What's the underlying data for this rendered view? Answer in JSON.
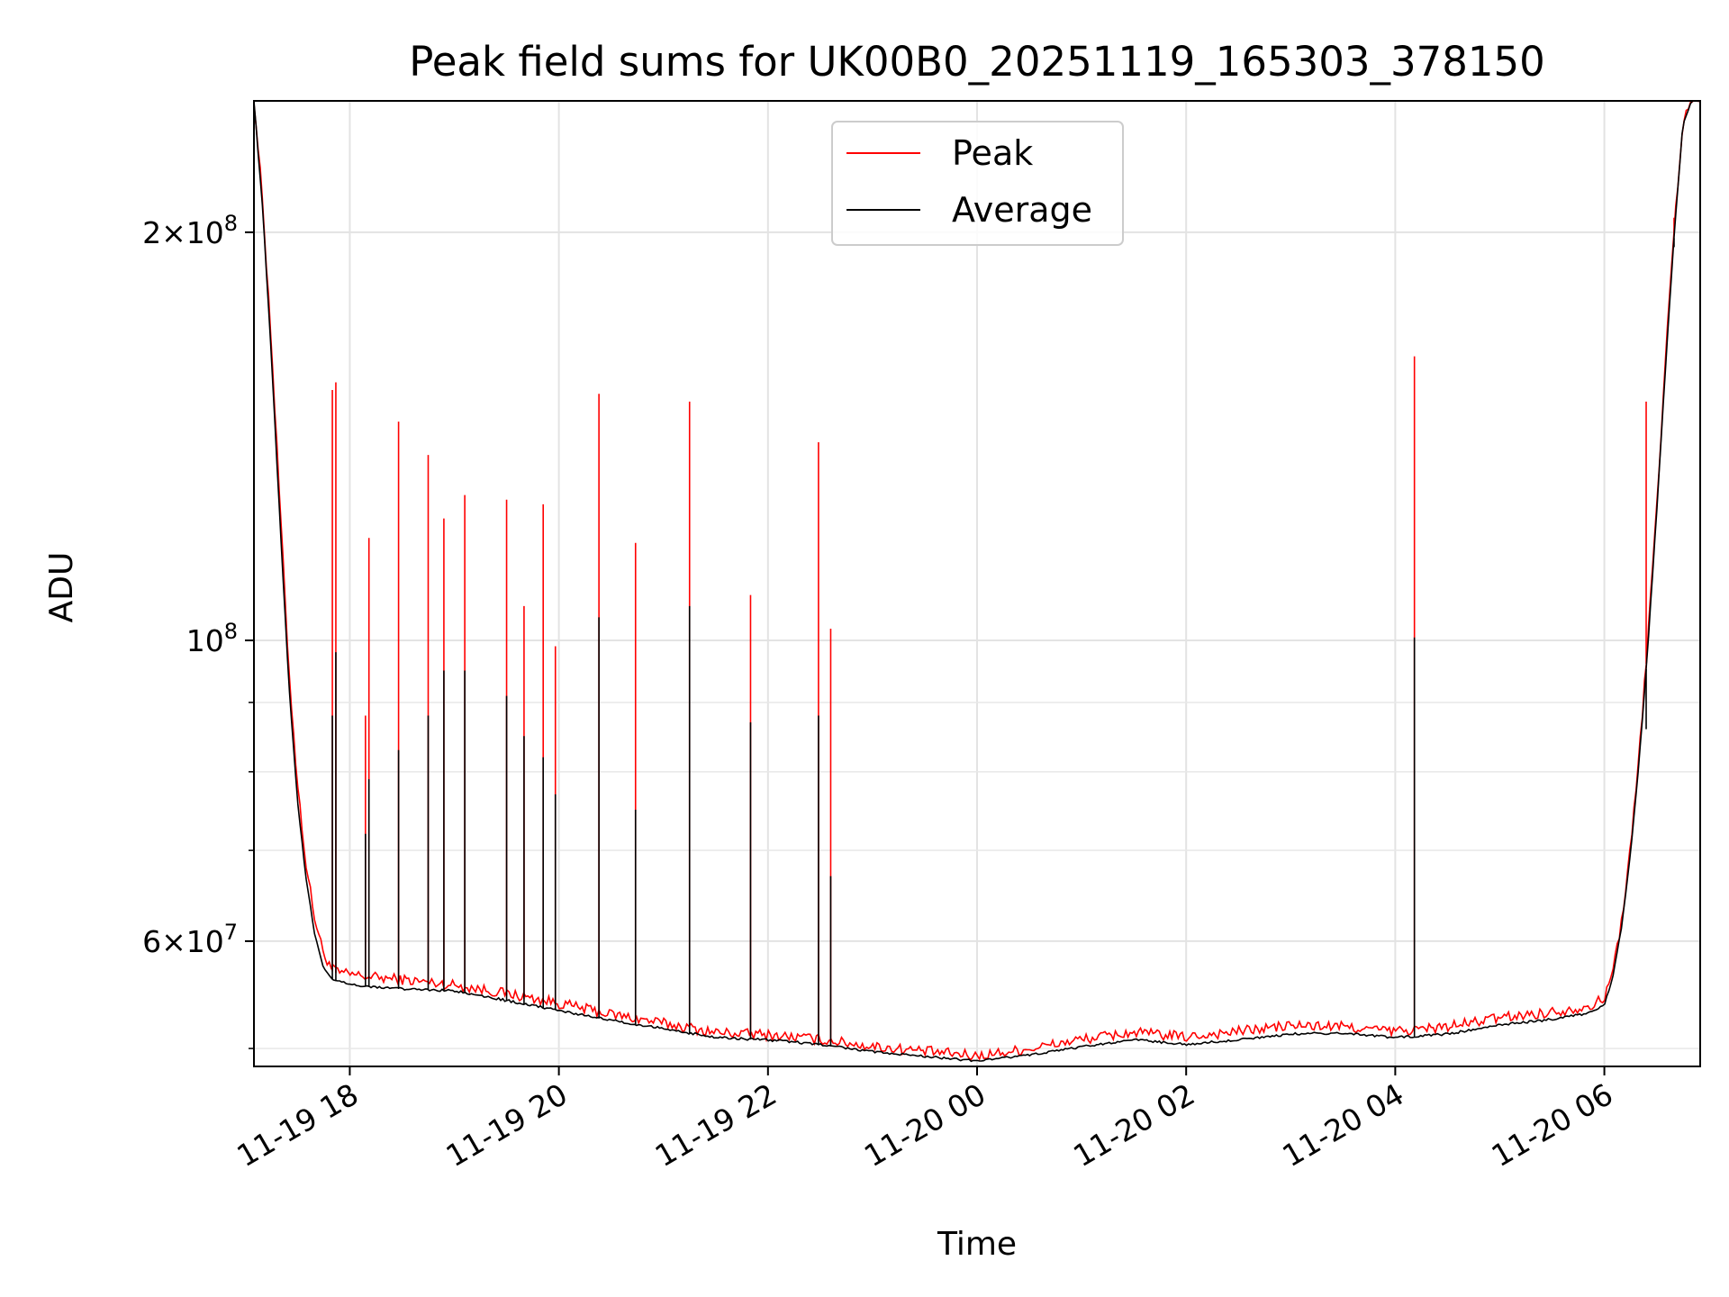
{
  "chart_data": {
    "type": "line",
    "title": "Peak field sums for UK00B0_20251119_165303_378150",
    "xlabel": "Time",
    "ylabel": "ADU",
    "yscale": "log",
    "grid": true,
    "legend_position": "top-center",
    "x_range": [
      "2025-11-19 17:05",
      "2025-11-20 06:55"
    ],
    "ylim": [
      48500000,
      250000000
    ],
    "x_ticks": [
      {
        "x": "2025-11-19 18:00",
        "label": "11-19 18"
      },
      {
        "x": "2025-11-19 20:00",
        "label": "11-19 20"
      },
      {
        "x": "2025-11-19 22:00",
        "label": "11-19 22"
      },
      {
        "x": "2025-11-20 00:00",
        "label": "11-20 00"
      },
      {
        "x": "2025-11-20 02:00",
        "label": "11-20 02"
      },
      {
        "x": "2025-11-20 04:00",
        "label": "11-20 04"
      },
      {
        "x": "2025-11-20 06:00",
        "label": "11-20 06"
      }
    ],
    "y_ticks_major": [
      {
        "y": 60000000,
        "base": "6",
        "exp": "7"
      },
      {
        "y": 100000000,
        "base": "",
        "exp": "8"
      },
      {
        "y": 200000000,
        "base": "2",
        "exp": "8"
      }
    ],
    "y_ticks_minor": [
      50000000,
      70000000,
      80000000,
      90000000
    ],
    "series": [
      {
        "name": "Peak",
        "color": "#ff0000",
        "x": [
          "2025-11-19 17:05",
          "2025-11-19 17:10",
          "2025-11-19 17:15",
          "2025-11-19 17:20",
          "2025-11-19 17:25",
          "2025-11-19 17:30",
          "2025-11-19 17:35",
          "2025-11-19 17:40",
          "2025-11-19 17:45",
          "2025-11-19 17:50",
          "2025-11-19 17:55",
          "2025-11-19 18:10",
          "2025-11-19 18:30",
          "2025-11-19 19:00",
          "2025-11-19 19:30",
          "2025-11-19 20:00",
          "2025-11-19 20:30",
          "2025-11-19 21:00",
          "2025-11-19 21:30",
          "2025-11-19 22:00",
          "2025-11-19 22:30",
          "2025-11-19 23:00",
          "2025-11-19 23:30",
          "2025-11-20 00:00",
          "2025-11-20 00:30",
          "2025-11-20 01:00",
          "2025-11-20 01:30",
          "2025-11-20 02:00",
          "2025-11-20 02:30",
          "2025-11-20 03:00",
          "2025-11-20 03:30",
          "2025-11-20 04:00",
          "2025-11-20 04:30",
          "2025-11-20 05:00",
          "2025-11-20 05:30",
          "2025-11-20 05:50",
          "2025-11-20 06:00",
          "2025-11-20 06:05",
          "2025-11-20 06:10",
          "2025-11-20 06:15",
          "2025-11-20 06:20",
          "2025-11-20 06:25",
          "2025-11-20 06:30",
          "2025-11-20 06:35",
          "2025-11-20 06:40",
          "2025-11-20 06:45",
          "2025-11-20 06:50",
          "2025-11-20 06:55"
        ],
        "y": [
          250000000,
          210000000,
          165000000,
          125000000,
          95000000,
          78000000,
          68000000,
          62000000,
          58500000,
          57000000,
          56600000,
          56300000,
          56000000,
          55500000,
          54700000,
          53800000,
          52800000,
          52000000,
          51200000,
          51000000,
          50600000,
          50000000,
          49600000,
          49200000,
          49800000,
          50600000,
          51200000,
          50800000,
          51300000,
          51800000,
          51700000,
          51300000,
          51700000,
          52500000,
          53000000,
          53500000,
          54200000,
          57000000,
          62000000,
          70000000,
          82000000,
          100000000,
          125000000,
          160000000,
          200000000,
          240000000,
          250000000,
          250000000
        ],
        "spikes": [
          {
            "x": "2025-11-19 17:50",
            "y": 153000000
          },
          {
            "x": "2025-11-19 17:52",
            "y": 155000000
          },
          {
            "x": "2025-11-19 18:09",
            "y": 88000000
          },
          {
            "x": "2025-11-19 18:11",
            "y": 119000000
          },
          {
            "x": "2025-11-19 18:28",
            "y": 145000000
          },
          {
            "x": "2025-11-19 18:45",
            "y": 137000000
          },
          {
            "x": "2025-11-19 18:54",
            "y": 123000000
          },
          {
            "x": "2025-11-19 19:06",
            "y": 128000000
          },
          {
            "x": "2025-11-19 19:30",
            "y": 127000000
          },
          {
            "x": "2025-11-19 19:40",
            "y": 106000000
          },
          {
            "x": "2025-11-19 19:51",
            "y": 126000000
          },
          {
            "x": "2025-11-19 19:58",
            "y": 99000000
          },
          {
            "x": "2025-11-19 20:23",
            "y": 152000000
          },
          {
            "x": "2025-11-19 20:44",
            "y": 118000000
          },
          {
            "x": "2025-11-19 21:15",
            "y": 150000000
          },
          {
            "x": "2025-11-19 21:50",
            "y": 108000000
          },
          {
            "x": "2025-11-19 22:29",
            "y": 140000000
          },
          {
            "x": "2025-11-19 22:36",
            "y": 102000000
          },
          {
            "x": "2025-11-20 04:11",
            "y": 162000000
          },
          {
            "x": "2025-11-20 06:24",
            "y": 150000000
          },
          {
            "x": "2025-11-20 06:40",
            "y": 205000000
          }
        ]
      },
      {
        "name": "Average",
        "color": "#000000",
        "x": [
          "2025-11-19 17:05",
          "2025-11-19 17:10",
          "2025-11-19 17:15",
          "2025-11-19 17:20",
          "2025-11-19 17:25",
          "2025-11-19 17:30",
          "2025-11-19 17:35",
          "2025-11-19 17:40",
          "2025-11-19 17:45",
          "2025-11-19 17:50",
          "2025-11-19 17:55",
          "2025-11-19 18:10",
          "2025-11-19 18:30",
          "2025-11-19 19:00",
          "2025-11-19 19:30",
          "2025-11-19 20:00",
          "2025-11-19 20:30",
          "2025-11-19 21:00",
          "2025-11-19 21:30",
          "2025-11-19 22:00",
          "2025-11-19 22:30",
          "2025-11-19 23:00",
          "2025-11-19 23:30",
          "2025-11-20 00:00",
          "2025-11-20 00:30",
          "2025-11-20 01:00",
          "2025-11-20 01:30",
          "2025-11-20 02:00",
          "2025-11-20 02:30",
          "2025-11-20 03:00",
          "2025-11-20 03:30",
          "2025-11-20 04:00",
          "2025-11-20 04:30",
          "2025-11-20 05:00",
          "2025-11-20 05:30",
          "2025-11-20 05:50",
          "2025-11-20 06:00",
          "2025-11-20 06:05",
          "2025-11-20 06:10",
          "2025-11-20 06:15",
          "2025-11-20 06:20",
          "2025-11-20 06:25",
          "2025-11-20 06:30",
          "2025-11-20 06:35",
          "2025-11-20 06:40",
          "2025-11-20 06:45",
          "2025-11-20 06:50",
          "2025-11-20 06:55"
        ],
        "y": [
          250000000,
          208000000,
          162000000,
          122000000,
          93000000,
          76000000,
          66500000,
          60500000,
          57300000,
          56200000,
          55900000,
          55500000,
          55300000,
          55100000,
          54200000,
          53300000,
          52400000,
          51700000,
          50900000,
          50700000,
          50300000,
          49700000,
          49300000,
          48900000,
          49400000,
          50100000,
          50700000,
          50300000,
          50700000,
          51200000,
          51300000,
          50900000,
          51200000,
          52000000,
          52500000,
          53000000,
          53800000,
          56500000,
          61500000,
          69500000,
          81500000,
          99000000,
          124000000,
          158000000,
          198000000,
          240000000,
          250000000,
          250000000
        ],
        "spikes": [
          {
            "x": "2025-11-19 17:50",
            "y": 88000000
          },
          {
            "x": "2025-11-19 17:52",
            "y": 98000000
          },
          {
            "x": "2025-11-19 18:09",
            "y": 72000000
          },
          {
            "x": "2025-11-19 18:11",
            "y": 79000000
          },
          {
            "x": "2025-11-19 18:28",
            "y": 83000000
          },
          {
            "x": "2025-11-19 18:45",
            "y": 88000000
          },
          {
            "x": "2025-11-19 18:54",
            "y": 95000000
          },
          {
            "x": "2025-11-19 19:06",
            "y": 95000000
          },
          {
            "x": "2025-11-19 19:30",
            "y": 91000000
          },
          {
            "x": "2025-11-19 19:40",
            "y": 85000000
          },
          {
            "x": "2025-11-19 19:51",
            "y": 82000000
          },
          {
            "x": "2025-11-19 19:58",
            "y": 77000000
          },
          {
            "x": "2025-11-19 20:23",
            "y": 104000000
          },
          {
            "x": "2025-11-19 20:44",
            "y": 75000000
          },
          {
            "x": "2025-11-19 21:15",
            "y": 106000000
          },
          {
            "x": "2025-11-19 21:50",
            "y": 87000000
          },
          {
            "x": "2025-11-19 22:29",
            "y": 88000000
          },
          {
            "x": "2025-11-19 22:36",
            "y": 67000000
          },
          {
            "x": "2025-11-20 04:11",
            "y": 100500000
          },
          {
            "x": "2025-11-20 06:24",
            "y": 86000000
          },
          {
            "x": "2025-11-20 06:40",
            "y": 195000000
          }
        ]
      }
    ]
  }
}
